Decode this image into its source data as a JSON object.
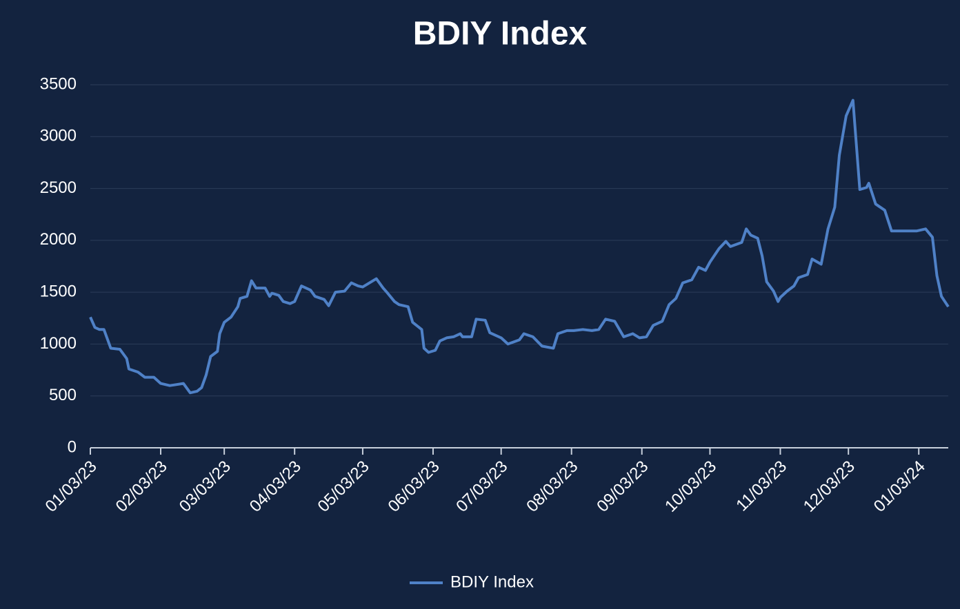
{
  "chart_data": {
    "type": "line",
    "title": "BDIY Index",
    "x": [
      "2023-01-03",
      "2023-01-05",
      "2023-01-07",
      "2023-01-09",
      "2023-01-12",
      "2023-01-16",
      "2023-01-19",
      "2023-01-20",
      "2023-01-24",
      "2023-01-27",
      "2023-01-31",
      "2023-02-03",
      "2023-02-07",
      "2023-02-10",
      "2023-02-13",
      "2023-02-16",
      "2023-02-19",
      "2023-02-21",
      "2023-02-23",
      "2023-02-25",
      "2023-02-28",
      "2023-03-01",
      "2023-03-03",
      "2023-03-06",
      "2023-03-09",
      "2023-03-10",
      "2023-03-13",
      "2023-03-15",
      "2023-03-17",
      "2023-03-21",
      "2023-03-23",
      "2023-03-24",
      "2023-03-27",
      "2023-03-29",
      "2023-04-01",
      "2023-04-03",
      "2023-04-06",
      "2023-04-10",
      "2023-04-12",
      "2023-04-16",
      "2023-04-18",
      "2023-04-21",
      "2023-04-25",
      "2023-04-28",
      "2023-05-01",
      "2023-05-03",
      "2023-05-06",
      "2023-05-09",
      "2023-05-12",
      "2023-05-14",
      "2023-05-17",
      "2023-05-19",
      "2023-05-23",
      "2023-05-25",
      "2023-05-29",
      "2023-05-30",
      "2023-06-01",
      "2023-06-04",
      "2023-06-06",
      "2023-06-09",
      "2023-06-12",
      "2023-06-15",
      "2023-06-16",
      "2023-06-20",
      "2023-06-22",
      "2023-06-26",
      "2023-06-28",
      "2023-07-03",
      "2023-07-06",
      "2023-07-11",
      "2023-07-13",
      "2023-07-17",
      "2023-07-21",
      "2023-07-26",
      "2023-07-28",
      "2023-08-01",
      "2023-08-04",
      "2023-08-08",
      "2023-08-12",
      "2023-08-15",
      "2023-08-18",
      "2023-08-22",
      "2023-08-26",
      "2023-08-30",
      "2023-09-02",
      "2023-09-05",
      "2023-09-08",
      "2023-09-12",
      "2023-09-15",
      "2023-09-18",
      "2023-09-21",
      "2023-09-25",
      "2023-09-28",
      "2023-10-01",
      "2023-10-03",
      "2023-10-07",
      "2023-10-10",
      "2023-10-12",
      "2023-10-17",
      "2023-10-19",
      "2023-10-21",
      "2023-10-24",
      "2023-10-26",
      "2023-10-28",
      "2023-10-31",
      "2023-11-02",
      "2023-11-03",
      "2023-11-06",
      "2023-11-09",
      "2023-11-11",
      "2023-11-15",
      "2023-11-17",
      "2023-11-21",
      "2023-11-24",
      "2023-11-27",
      "2023-11-29",
      "2023-12-02",
      "2023-12-05",
      "2023-12-08",
      "2023-12-11",
      "2023-12-12",
      "2023-12-15",
      "2023-12-19",
      "2023-12-22",
      "2023-12-28",
      "2024-01-02",
      "2024-01-06",
      "2024-01-09",
      "2024-01-11",
      "2024-01-13",
      "2024-01-16"
    ],
    "series": [
      {
        "name": "BDIY Index",
        "color": "#4f81c7",
        "values": [
          1260,
          1160,
          1140,
          1140,
          960,
          950,
          860,
          760,
          730,
          680,
          680,
          620,
          600,
          610,
          620,
          530,
          545,
          580,
          700,
          880,
          930,
          1100,
          1210,
          1260,
          1360,
          1440,
          1460,
          1610,
          1540,
          1540,
          1460,
          1490,
          1470,
          1410,
          1390,
          1410,
          1560,
          1520,
          1460,
          1430,
          1370,
          1500,
          1510,
          1590,
          1560,
          1550,
          1590,
          1630,
          1540,
          1490,
          1410,
          1380,
          1360,
          1210,
          1140,
          960,
          920,
          940,
          1030,
          1060,
          1070,
          1100,
          1070,
          1070,
          1240,
          1230,
          1110,
          1060,
          1000,
          1040,
          1100,
          1070,
          980,
          960,
          1100,
          1130,
          1130,
          1140,
          1130,
          1140,
          1240,
          1220,
          1070,
          1100,
          1060,
          1070,
          1180,
          1220,
          1380,
          1440,
          1590,
          1620,
          1740,
          1710,
          1790,
          1920,
          1990,
          1940,
          1980,
          2110,
          2050,
          2020,
          1850,
          1600,
          1510,
          1410,
          1450,
          1510,
          1560,
          1640,
          1670,
          1820,
          1770,
          2110,
          2320,
          2820,
          3200,
          3350,
          2490,
          2510,
          2550,
          2350,
          2290,
          2090,
          2090,
          2090,
          2110,
          2030,
          1660,
          1460,
          1360
        ]
      }
    ],
    "xlim": [
      "2023-01-03",
      "2024-01-16"
    ],
    "xticks": [
      {
        "value": "2023-01-03",
        "label": "01/03/23"
      },
      {
        "value": "2023-02-03",
        "label": "02/03/23"
      },
      {
        "value": "2023-03-03",
        "label": "03/03/23"
      },
      {
        "value": "2023-04-03",
        "label": "04/03/23"
      },
      {
        "value": "2023-05-03",
        "label": "05/03/23"
      },
      {
        "value": "2023-06-03",
        "label": "06/03/23"
      },
      {
        "value": "2023-07-03",
        "label": "07/03/23"
      },
      {
        "value": "2023-08-03",
        "label": "08/03/23"
      },
      {
        "value": "2023-09-03",
        "label": "09/03/23"
      },
      {
        "value": "2023-10-03",
        "label": "10/03/23"
      },
      {
        "value": "2023-11-03",
        "label": "11/03/23"
      },
      {
        "value": "2023-12-03",
        "label": "12/03/23"
      },
      {
        "value": "2024-01-03",
        "label": "01/03/24"
      }
    ],
    "ylim": [
      0,
      3500
    ],
    "yticks": [
      0,
      500,
      1000,
      1500,
      2000,
      2500,
      3000,
      3500
    ],
    "grid": true,
    "legend": "bottom"
  }
}
